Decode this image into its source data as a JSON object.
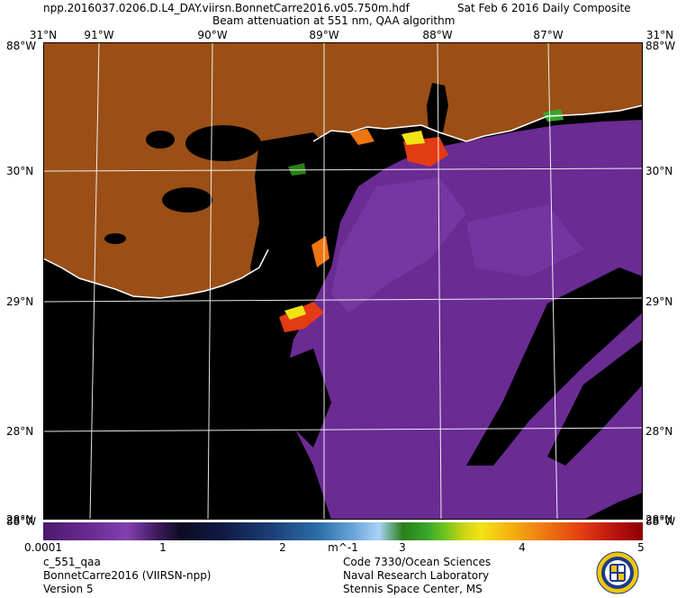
{
  "header": {
    "filename": "npp.2016037.0206.D.L4_DAY.viirsn.BonnetCarre2016.v05.750m.hdf",
    "date": "Sat Feb  6 2016 Daily Composite",
    "subtitle": "Beam attenuation at 551 nm, QAA algorithm"
  },
  "map": {
    "lon_ticks_top": [
      "91°W",
      "90°W",
      "89°W",
      "88°W",
      "87°W"
    ],
    "corner_top_left": "31°N",
    "corner_top_left_lon": "88°W",
    "corner_top_right": "31°N",
    "corner_top_right_lon": "88°W",
    "lat_ticks": [
      "30°N",
      "29°N",
      "28°N"
    ],
    "corner_bottom_left": "28°N",
    "corner_bottom_left_lon": "88°W",
    "corner_bottom_right": "28°N",
    "corner_bottom_right_lon": "88°W",
    "colors": {
      "land": "#9b4f17",
      "nodata": "#000000",
      "water_low": "#6a2b92",
      "grid": "#ffffff"
    }
  },
  "colorbar": {
    "ticks": [
      "0.0001",
      "1",
      "2",
      "3",
      "4",
      "5"
    ],
    "unit": "m^-1"
  },
  "footer": {
    "left": [
      "c_551_qaa",
      "BonnetCarre2016 (VIIRSN-npp)",
      "Version 5"
    ],
    "right": [
      "Code 7330/Ocean Sciences",
      "Naval Research Laboratory",
      "Stennis Space Center, MS"
    ]
  },
  "logo_icon": "nrl-seal-icon"
}
